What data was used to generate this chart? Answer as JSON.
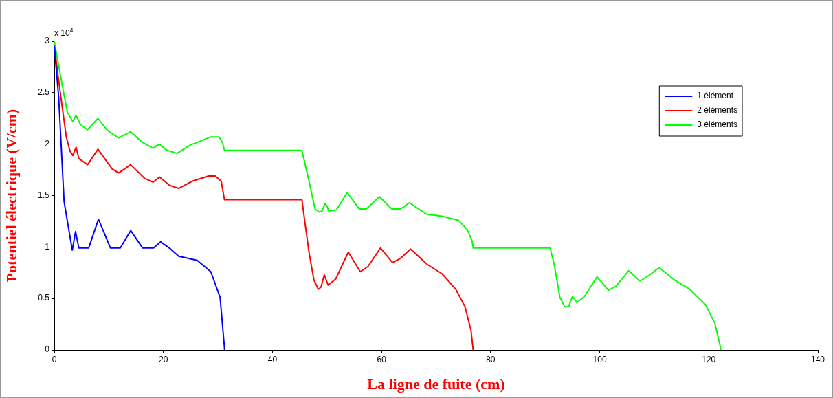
{
  "chart_data": {
    "type": "line",
    "xlabel": "La ligne de fuite (cm)",
    "ylabel": "Potentiel électrique (V/cm)",
    "annotations": [
      "x 10$^{4}$"
    ],
    "xlim": [
      0,
      140
    ],
    "xticks": [
      0,
      20,
      40,
      60,
      80,
      100,
      120,
      140
    ],
    "ylim": [
      0,
      3
    ],
    "yticks": [
      0,
      0.5,
      1,
      1.5,
      2,
      2.5,
      3
    ],
    "legend": "top right",
    "marker": "none",
    "line_style": "solid",
    "series": [
      {
        "name": "1 élément",
        "color": "#0000ff",
        "x": [
          0,
          0.8,
          1.8,
          3.3,
          3.9,
          4.5,
          6.3,
          8.1,
          10.3,
          12.1,
          14.0,
          16.2,
          18.2,
          19.5,
          21.1,
          22.8,
          26.2,
          28.7,
          30.4,
          31.2,
          31.2
        ],
        "values": [
          2.95,
          2.46,
          1.44,
          0.97,
          1.15,
          0.99,
          0.99,
          1.27,
          0.99,
          0.99,
          1.16,
          0.99,
          0.99,
          1.05,
          0.99,
          0.91,
          0.87,
          0.76,
          0.51,
          0.02,
          0
        ]
      },
      {
        "name": "2 éléments",
        "color": "#ff0000",
        "x": [
          0,
          1.2,
          2.2,
          2.9,
          3.4,
          4.0,
          4.5,
          6.1,
          8.0,
          10.6,
          11.8,
          14.0,
          16.5,
          18.1,
          19.3,
          21.1,
          22.8,
          25.3,
          28.3,
          29.5,
          30.6,
          31.2,
          45.4,
          45.9,
          46.7,
          47.6,
          48.4,
          48.9,
          49.5,
          50.2,
          51.6,
          53.9,
          56.1,
          57.5,
          59.8,
          62.0,
          63.5,
          65.3,
          68.4,
          71.1,
          73.6,
          75.3,
          76.4,
          76.8
        ],
        "values": [
          2.95,
          2.46,
          2.07,
          1.93,
          1.89,
          1.97,
          1.86,
          1.8,
          1.95,
          1.76,
          1.72,
          1.8,
          1.67,
          1.63,
          1.68,
          1.6,
          1.57,
          1.64,
          1.69,
          1.69,
          1.64,
          1.46,
          1.46,
          1.26,
          0.95,
          0.68,
          0.59,
          0.61,
          0.73,
          0.63,
          0.69,
          0.95,
          0.76,
          0.81,
          0.99,
          0.85,
          0.89,
          0.98,
          0.83,
          0.74,
          0.59,
          0.42,
          0.19,
          0
        ]
      },
      {
        "name": "3 éléments",
        "color": "#00ff00",
        "x": [
          0,
          1.6,
          2.4,
          3.4,
          4.0,
          4.8,
          6.1,
          8.0,
          9.8,
          11.8,
          14.0,
          16.1,
          18.1,
          19.2,
          20.7,
          22.5,
          24.9,
          28.7,
          30.2,
          30.8,
          31.2,
          45.4,
          46.7,
          47.8,
          48.6,
          49.1,
          49.6,
          50.0,
          50.3,
          51.7,
          53.7,
          55.9,
          57.2,
          59.6,
          61.9,
          63.5,
          65.1,
          68.2,
          71.1,
          74.1,
          75.7,
          76.6,
          76.8,
          90.9,
          91.7,
          92.7,
          93.6,
          94.3,
          95.0,
          95.8,
          97.2,
          99.5,
          101.6,
          103.0,
          105.3,
          107.4,
          108.9,
          110.9,
          113.7,
          116.5,
          119.4,
          121.1,
          122.0,
          122.2
        ],
        "values": [
          3.0,
          2.53,
          2.31,
          2.22,
          2.28,
          2.19,
          2.14,
          2.25,
          2.13,
          2.06,
          2.12,
          2.02,
          1.96,
          2.0,
          1.94,
          1.91,
          1.99,
          2.07,
          2.07,
          2.02,
          1.94,
          1.94,
          1.64,
          1.37,
          1.34,
          1.35,
          1.42,
          1.4,
          1.35,
          1.36,
          1.53,
          1.37,
          1.37,
          1.49,
          1.37,
          1.37,
          1.43,
          1.32,
          1.3,
          1.26,
          1.17,
          1.06,
          0.99,
          0.99,
          0.82,
          0.51,
          0.42,
          0.42,
          0.52,
          0.46,
          0.52,
          0.71,
          0.58,
          0.62,
          0.77,
          0.67,
          0.72,
          0.8,
          0.68,
          0.59,
          0.44,
          0.26,
          0.06,
          0
        ]
      }
    ]
  }
}
